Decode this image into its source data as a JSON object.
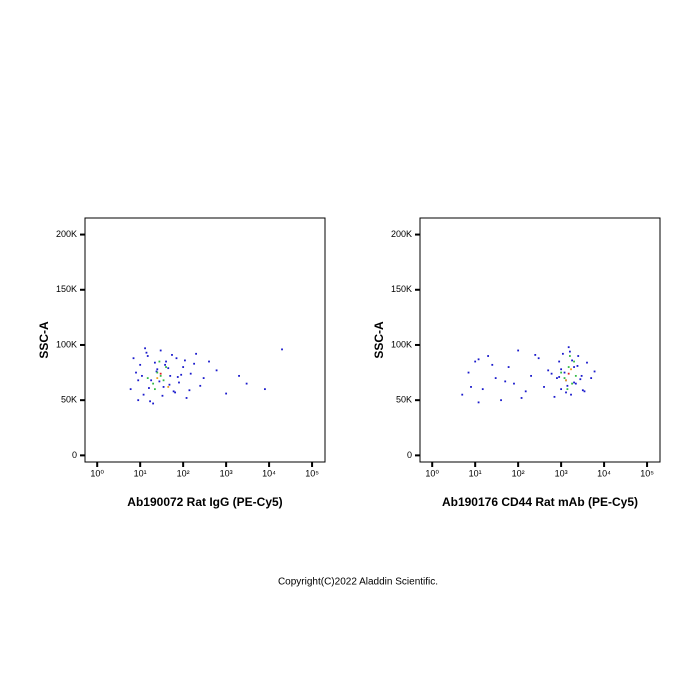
{
  "chart_data": [
    {
      "type": "scatter",
      "xlabel": "Ab190072 Rat IgG (PE-Cy5)",
      "ylabel": "SSC-A",
      "log_x": true,
      "xlim": [
        0.52,
        200000
      ],
      "ylim": [
        -6000,
        215000
      ],
      "xticks": [
        {
          "value": 1,
          "label": "10⁰"
        },
        {
          "value": 10,
          "label": "10¹"
        },
        {
          "value": 100,
          "label": "10²"
        },
        {
          "value": 1000,
          "label": "10³"
        },
        {
          "value": 10000,
          "label": "10⁴"
        },
        {
          "value": 100000,
          "label": "10⁵"
        }
      ],
      "yticks": [
        0,
        {
          "value": 50000,
          "label": "50K"
        },
        {
          "value": 100000,
          "label": "100K"
        },
        {
          "value": 150000,
          "label": "150K"
        },
        {
          "value": 200000,
          "label": "200K"
        }
      ],
      "series": [
        {
          "color": "#1a1acc",
          "x": [
            6,
            8,
            10,
            12,
            15,
            18,
            20,
            25,
            30,
            35,
            40,
            50,
            60,
            70,
            80,
            100,
            120,
            150,
            200,
            250,
            300,
            400,
            600,
            1000,
            2000,
            3000,
            8000,
            20000,
            7,
            9,
            11,
            14,
            16,
            22,
            28,
            33,
            45,
            55,
            65,
            90,
            110,
            9,
            13,
            17,
            24,
            38,
            48,
            75,
            140,
            180
          ],
          "y": [
            60000,
            75000,
            82000,
            55000,
            90000,
            68000,
            47000,
            78000,
            95000,
            62000,
            85000,
            72000,
            58000,
            88000,
            66000,
            80000,
            52000,
            74000,
            92000,
            63000,
            70000,
            85000,
            77000,
            56000,
            72000,
            65000,
            60000,
            96000,
            88000,
            50000,
            72000,
            93000,
            61000,
            84000,
            67000,
            54000,
            79000,
            91000,
            57000,
            73000,
            86000,
            68000,
            97000,
            49000,
            76000,
            82000,
            64000,
            71000,
            59000,
            83000
          ]
        },
        {
          "color": "#33bb44",
          "x": [
            15,
            20,
            25,
            30,
            35,
            40,
            22,
            28
          ],
          "y": [
            70000,
            65000,
            75000,
            72000,
            68000,
            80000,
            60000,
            85000
          ]
        },
        {
          "color": "#f0a020",
          "x": [
            25,
            45
          ],
          "y": [
            70000,
            62000
          ]
        },
        {
          "color": "#e02020",
          "x": [
            30
          ],
          "y": [
            74000
          ]
        }
      ]
    },
    {
      "type": "scatter",
      "xlabel": "Ab190176 CD44 Rat mAb (PE-Cy5)",
      "ylabel": "SSC-A",
      "log_x": true,
      "xlim": [
        0.52,
        200000
      ],
      "ylim": [
        -6000,
        215000
      ],
      "xticks": [
        {
          "value": 1,
          "label": "10⁰"
        },
        {
          "value": 10,
          "label": "10¹"
        },
        {
          "value": 100,
          "label": "10²"
        },
        {
          "value": 1000,
          "label": "10³"
        },
        {
          "value": 10000,
          "label": "10⁴"
        },
        {
          "value": 100000,
          "label": "10⁵"
        }
      ],
      "yticks": [
        0,
        {
          "value": 50000,
          "label": "50K"
        },
        {
          "value": 100000,
          "label": "100K"
        },
        {
          "value": 150000,
          "label": "150K"
        },
        {
          "value": 200000,
          "label": "200K"
        }
      ],
      "series": [
        {
          "color": "#1a1acc",
          "x": [
            5,
            7,
            10,
            15,
            20,
            30,
            40,
            60,
            80,
            100,
            150,
            200,
            300,
            400,
            500,
            700,
            800,
            900,
            1000,
            1100,
            1200,
            1300,
            1500,
            1700,
            2000,
            2200,
            2500,
            3000,
            3500,
            4000,
            5000,
            6000,
            8,
            12,
            25,
            50,
            120,
            250,
            600,
            1400,
            1800,
            2800,
            1000,
            1300,
            1600,
            2000,
            2400,
            900,
            3200,
            12
          ],
          "y": [
            55000,
            75000,
            85000,
            60000,
            90000,
            70000,
            50000,
            80000,
            65000,
            95000,
            58000,
            72000,
            88000,
            62000,
            77000,
            53000,
            70000,
            85000,
            60000,
            92000,
            75000,
            68000,
            98000,
            55000,
            80000,
            65000,
            90000,
            72000,
            58000,
            84000,
            70000,
            76000,
            62000,
            48000,
            82000,
            67000,
            52000,
            91000,
            74000,
            63000,
            86000,
            69000,
            78000,
            57000,
            94000,
            66000,
            81000,
            71000,
            59000,
            87000
          ]
        },
        {
          "color": "#33bb44",
          "x": [
            1200,
            1500,
            1800,
            1000,
            2000,
            1400,
            1600,
            2200
          ],
          "y": [
            70000,
            80000,
            65000,
            75000,
            85000,
            60000,
            90000,
            72000
          ]
        },
        {
          "color": "#f0a020",
          "x": [
            1300,
            1700
          ],
          "y": [
            68000,
            78000
          ]
        },
        {
          "color": "#e02020",
          "x": [
            1500
          ],
          "y": [
            74000
          ]
        }
      ]
    }
  ],
  "footer": "Copyright(C)2022 Aladdin Scientific."
}
